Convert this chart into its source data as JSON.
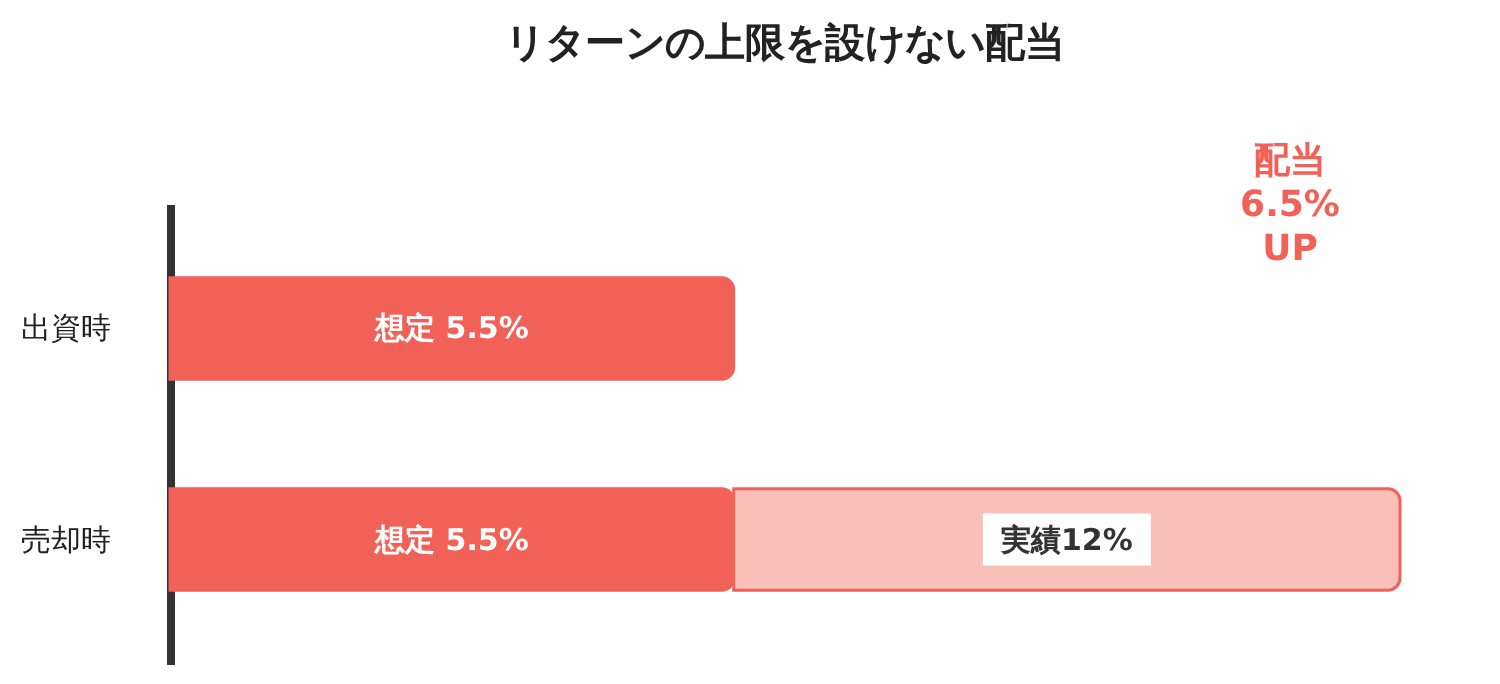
{
  "chart_data": {
    "type": "bar",
    "orientation": "horizontal",
    "stacked": true,
    "title": "リターンの上限を設けない配当",
    "categories": [
      "出資時",
      "売却時"
    ],
    "series": [
      {
        "color": "#f26157",
        "values": [
          5.5,
          5.5
        ],
        "value_labels": [
          "想定 5.5%",
          "想定 5.5%"
        ]
      },
      {
        "color": "#f9c0ba",
        "values": [
          null,
          6.5
        ],
        "value_labels": [
          null,
          "実績12%"
        ]
      }
    ],
    "annotations": [
      "配当\n6.5%\nUP"
    ],
    "tick_labels": "y",
    "grid": false,
    "legend": false
  }
}
